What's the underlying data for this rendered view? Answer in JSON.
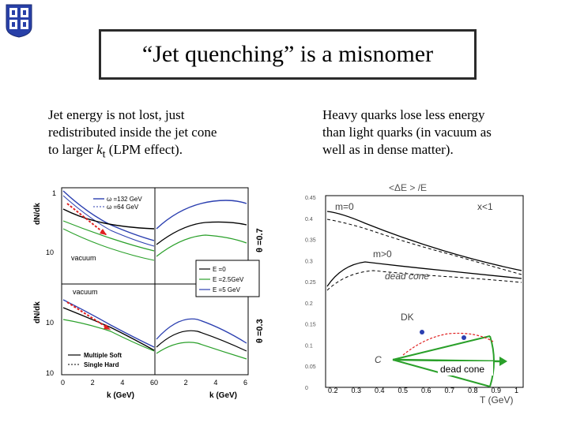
{
  "title": "“Jet quenching” is a misnomer",
  "left_text": {
    "line1": "Jet energy is not lost, just",
    "line2": "redistributed inside the jet cone",
    "line3_pre": "to larger ",
    "line3_k": "k",
    "line3_sub": "t",
    "line3_post": " (LPM effect)."
  },
  "right_text": {
    "line1": "Heavy quarks lose less energy",
    "line2": "than light quarks (in vacuum as",
    "line3": "well as in dense matter)."
  },
  "left_plot": {
    "ylabel_top": "dN/dk",
    "ylabel_bottom": "dN/dk",
    "ytick_top_1": "1",
    "ytick_top_2": "10",
    "ytick_bot_1": "10",
    "ytick_bot_2": "10",
    "theta_top": "θ =0.7",
    "theta_bottom": "θ =0.3",
    "legend_top_1": "ω =132 GeV",
    "legend_top_2": "ω =64 GeV",
    "legend_mid_1": "E =0",
    "legend_mid_2": "E =2.5GeV",
    "legend_mid_3": "E =5 GeV",
    "vacuum_top": "vacuum",
    "vacuum_bottom": "vacuum",
    "legend_bot_1": "Multiple Soft",
    "legend_bot_2": "Single Hard",
    "xticks_left": [
      "0",
      "2",
      "4",
      "6"
    ],
    "xticks_right": [
      "0",
      "2",
      "4",
      "6"
    ],
    "xlabel_left": "k (GeV)",
    "xlabel_right": "k (GeV)"
  },
  "right_plot": {
    "ylabel": "<ΔE >   /E",
    "label_m0": "m=0",
    "label_xl1": "x<1",
    "label_mgt0": "m>0",
    "label_deadcone_curve": "dead cone",
    "label_dk": "DK",
    "label_c": "C",
    "label_dead_cone": "dead cone",
    "xlabel": "T (GeV)",
    "yticks": [
      "0.45",
      "0.4",
      "0.35",
      "0.3",
      "0.25",
      "0.2",
      "0.15",
      "0.1",
      "0.05",
      "0"
    ],
    "xticks": [
      "0.2",
      "0.3",
      "0.4",
      "0.5",
      "0.6",
      "0.7",
      "0.8",
      "0.9",
      "1"
    ]
  },
  "colors": {
    "blue": "#2b3fb0",
    "green": "#2aa02a",
    "red": "#e02020",
    "black": "#000000"
  }
}
